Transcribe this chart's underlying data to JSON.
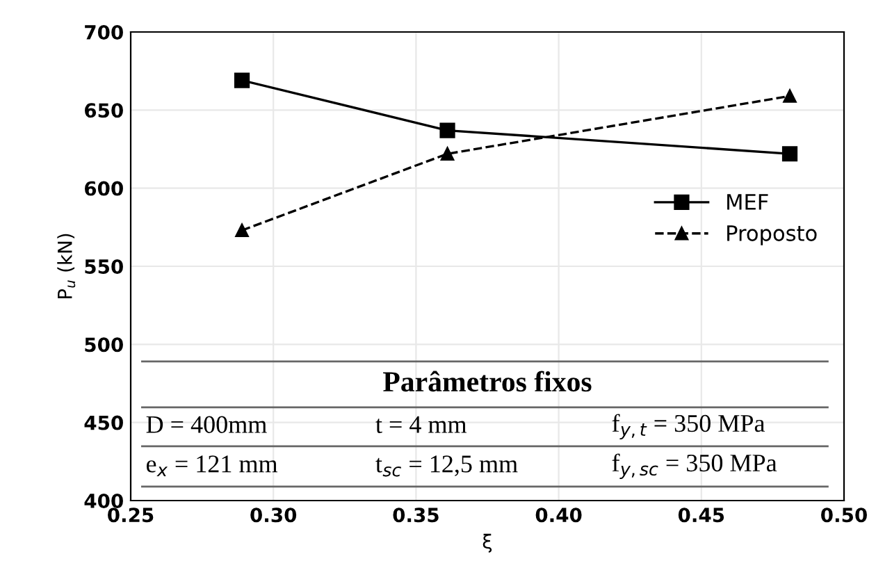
{
  "chart_data": {
    "type": "line",
    "xlabel": "ξ",
    "ylabel": "P$_{u}$ (kN)",
    "x": [
      0.289,
      0.361,
      0.481
    ],
    "series": [
      {
        "name": "MEF",
        "color": "#000000",
        "values": [
          669,
          637,
          622
        ],
        "marker": "square",
        "line_style": "solid"
      },
      {
        "name": "Proposto",
        "color": "#000000",
        "values": [
          573,
          622,
          659
        ],
        "marker": "triangle",
        "line_style": "dashed"
      }
    ],
    "xlim": [
      0.25,
      0.5
    ],
    "xticks": [
      {
        "value": 0.25,
        "label": "0.25"
      },
      {
        "value": 0.3,
        "label": "0.30"
      },
      {
        "value": 0.35,
        "label": "0.35"
      },
      {
        "value": 0.4,
        "label": "0.40"
      },
      {
        "value": 0.45,
        "label": "0.45"
      },
      {
        "value": 0.5,
        "label": "0.50"
      }
    ],
    "ylim": [
      400,
      700
    ],
    "yticks": [
      400,
      450,
      500,
      550,
      600,
      650,
      700
    ],
    "grid": true,
    "legend": "right",
    "annotations": [
      "Parâmetros fixos",
      "D = 400mm",
      "t = 4 mm",
      "f$_{y,t}$ = 350 MPa",
      "e$_{x}$ = 121 mm",
      "t$_{sc}$ = 12,5 mm",
      "f$_{y,sc}$ = 350 MPa"
    ]
  }
}
